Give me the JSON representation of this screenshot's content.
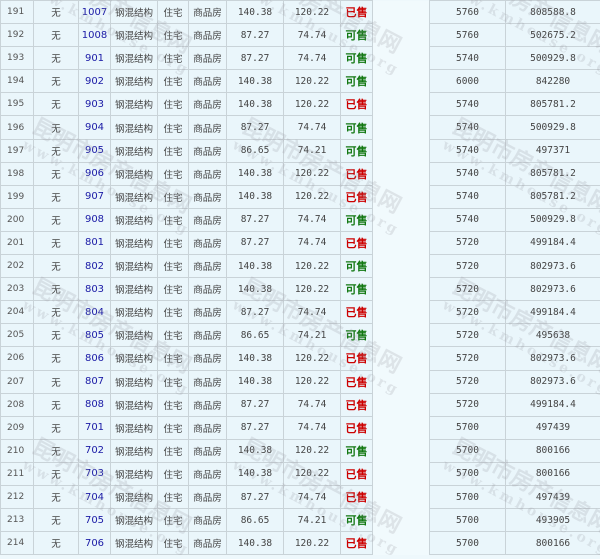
{
  "watermark": {
    "cn": "昆明市房产信息网",
    "en": "www.kmhouse.org"
  },
  "status_colors": {
    "已售": "#cc0000",
    "可售": "#117711"
  },
  "rows": [
    [
      "191",
      "无",
      "1007",
      "钢混结构",
      "住宅",
      "商品房",
      "140.38",
      "120.22",
      "已售",
      "",
      "5760",
      "808588.8"
    ],
    [
      "192",
      "无",
      "1008",
      "钢混结构",
      "住宅",
      "商品房",
      "87.27",
      "74.74",
      "可售",
      "",
      "5760",
      "502675.2"
    ],
    [
      "193",
      "无",
      "901",
      "钢混结构",
      "住宅",
      "商品房",
      "87.27",
      "74.74",
      "可售",
      "",
      "5740",
      "500929.8"
    ],
    [
      "194",
      "无",
      "902",
      "钢混结构",
      "住宅",
      "商品房",
      "140.38",
      "120.22",
      "可售",
      "",
      "6000",
      "842280"
    ],
    [
      "195",
      "无",
      "903",
      "钢混结构",
      "住宅",
      "商品房",
      "140.38",
      "120.22",
      "已售",
      "",
      "5740",
      "805781.2"
    ],
    [
      "196",
      "无",
      "904",
      "钢混结构",
      "住宅",
      "商品房",
      "87.27",
      "74.74",
      "可售",
      "",
      "5740",
      "500929.8"
    ],
    [
      "197",
      "无",
      "905",
      "钢混结构",
      "住宅",
      "商品房",
      "86.65",
      "74.21",
      "可售",
      "",
      "5740",
      "497371"
    ],
    [
      "198",
      "无",
      "906",
      "钢混结构",
      "住宅",
      "商品房",
      "140.38",
      "120.22",
      "已售",
      "",
      "5740",
      "805781.2"
    ],
    [
      "199",
      "无",
      "907",
      "钢混结构",
      "住宅",
      "商品房",
      "140.38",
      "120.22",
      "已售",
      "",
      "5740",
      "805781.2"
    ],
    [
      "200",
      "无",
      "908",
      "钢混结构",
      "住宅",
      "商品房",
      "87.27",
      "74.74",
      "可售",
      "",
      "5740",
      "500929.8"
    ],
    [
      "201",
      "无",
      "801",
      "钢混结构",
      "住宅",
      "商品房",
      "87.27",
      "74.74",
      "已售",
      "",
      "5720",
      "499184.4"
    ],
    [
      "202",
      "无",
      "802",
      "钢混结构",
      "住宅",
      "商品房",
      "140.38",
      "120.22",
      "可售",
      "",
      "5720",
      "802973.6"
    ],
    [
      "203",
      "无",
      "803",
      "钢混结构",
      "住宅",
      "商品房",
      "140.38",
      "120.22",
      "可售",
      "",
      "5720",
      "802973.6"
    ],
    [
      "204",
      "无",
      "804",
      "钢混结构",
      "住宅",
      "商品房",
      "87.27",
      "74.74",
      "已售",
      "",
      "5720",
      "499184.4"
    ],
    [
      "205",
      "无",
      "805",
      "钢混结构",
      "住宅",
      "商品房",
      "86.65",
      "74.21",
      "可售",
      "",
      "5720",
      "495638"
    ],
    [
      "206",
      "无",
      "806",
      "钢混结构",
      "住宅",
      "商品房",
      "140.38",
      "120.22",
      "已售",
      "",
      "5720",
      "802973.6"
    ],
    [
      "207",
      "无",
      "807",
      "钢混结构",
      "住宅",
      "商品房",
      "140.38",
      "120.22",
      "已售",
      "",
      "5720",
      "802973.6"
    ],
    [
      "208",
      "无",
      "808",
      "钢混结构",
      "住宅",
      "商品房",
      "87.27",
      "74.74",
      "已售",
      "",
      "5720",
      "499184.4"
    ],
    [
      "209",
      "无",
      "701",
      "钢混结构",
      "住宅",
      "商品房",
      "87.27",
      "74.74",
      "已售",
      "",
      "5700",
      "497439"
    ],
    [
      "210",
      "无",
      "702",
      "钢混结构",
      "住宅",
      "商品房",
      "140.38",
      "120.22",
      "可售",
      "",
      "5700",
      "800166"
    ],
    [
      "211",
      "无",
      "703",
      "钢混结构",
      "住宅",
      "商品房",
      "140.38",
      "120.22",
      "已售",
      "",
      "5700",
      "800166"
    ],
    [
      "212",
      "无",
      "704",
      "钢混结构",
      "住宅",
      "商品房",
      "87.27",
      "74.74",
      "已售",
      "",
      "5700",
      "497439"
    ],
    [
      "213",
      "无",
      "705",
      "钢混结构",
      "住宅",
      "商品房",
      "86.65",
      "74.21",
      "可售",
      "",
      "5700",
      "493905"
    ],
    [
      "214",
      "无",
      "706",
      "钢混结构",
      "住宅",
      "商品房",
      "140.38",
      "120.22",
      "已售",
      "",
      "5700",
      "800166"
    ]
  ]
}
